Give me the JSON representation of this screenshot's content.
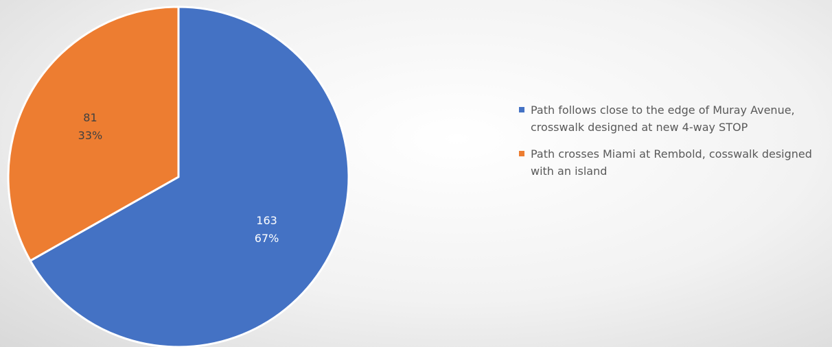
{
  "chart_data": {
    "type": "pie",
    "slices": [
      {
        "label": "Path follows close to the edge of Muray Avenue, crosswalk designed at new 4-way STOP",
        "value": 163,
        "percent": "67%",
        "color": "#4472c4"
      },
      {
        "label": "Path crosses Miami at Rembold, cosswalk designed with an island",
        "value": 81,
        "percent": "33%",
        "color": "#ed7d31"
      }
    ],
    "legend_position": "right",
    "label_colors": [
      "#ffffff",
      "#404040"
    ]
  }
}
